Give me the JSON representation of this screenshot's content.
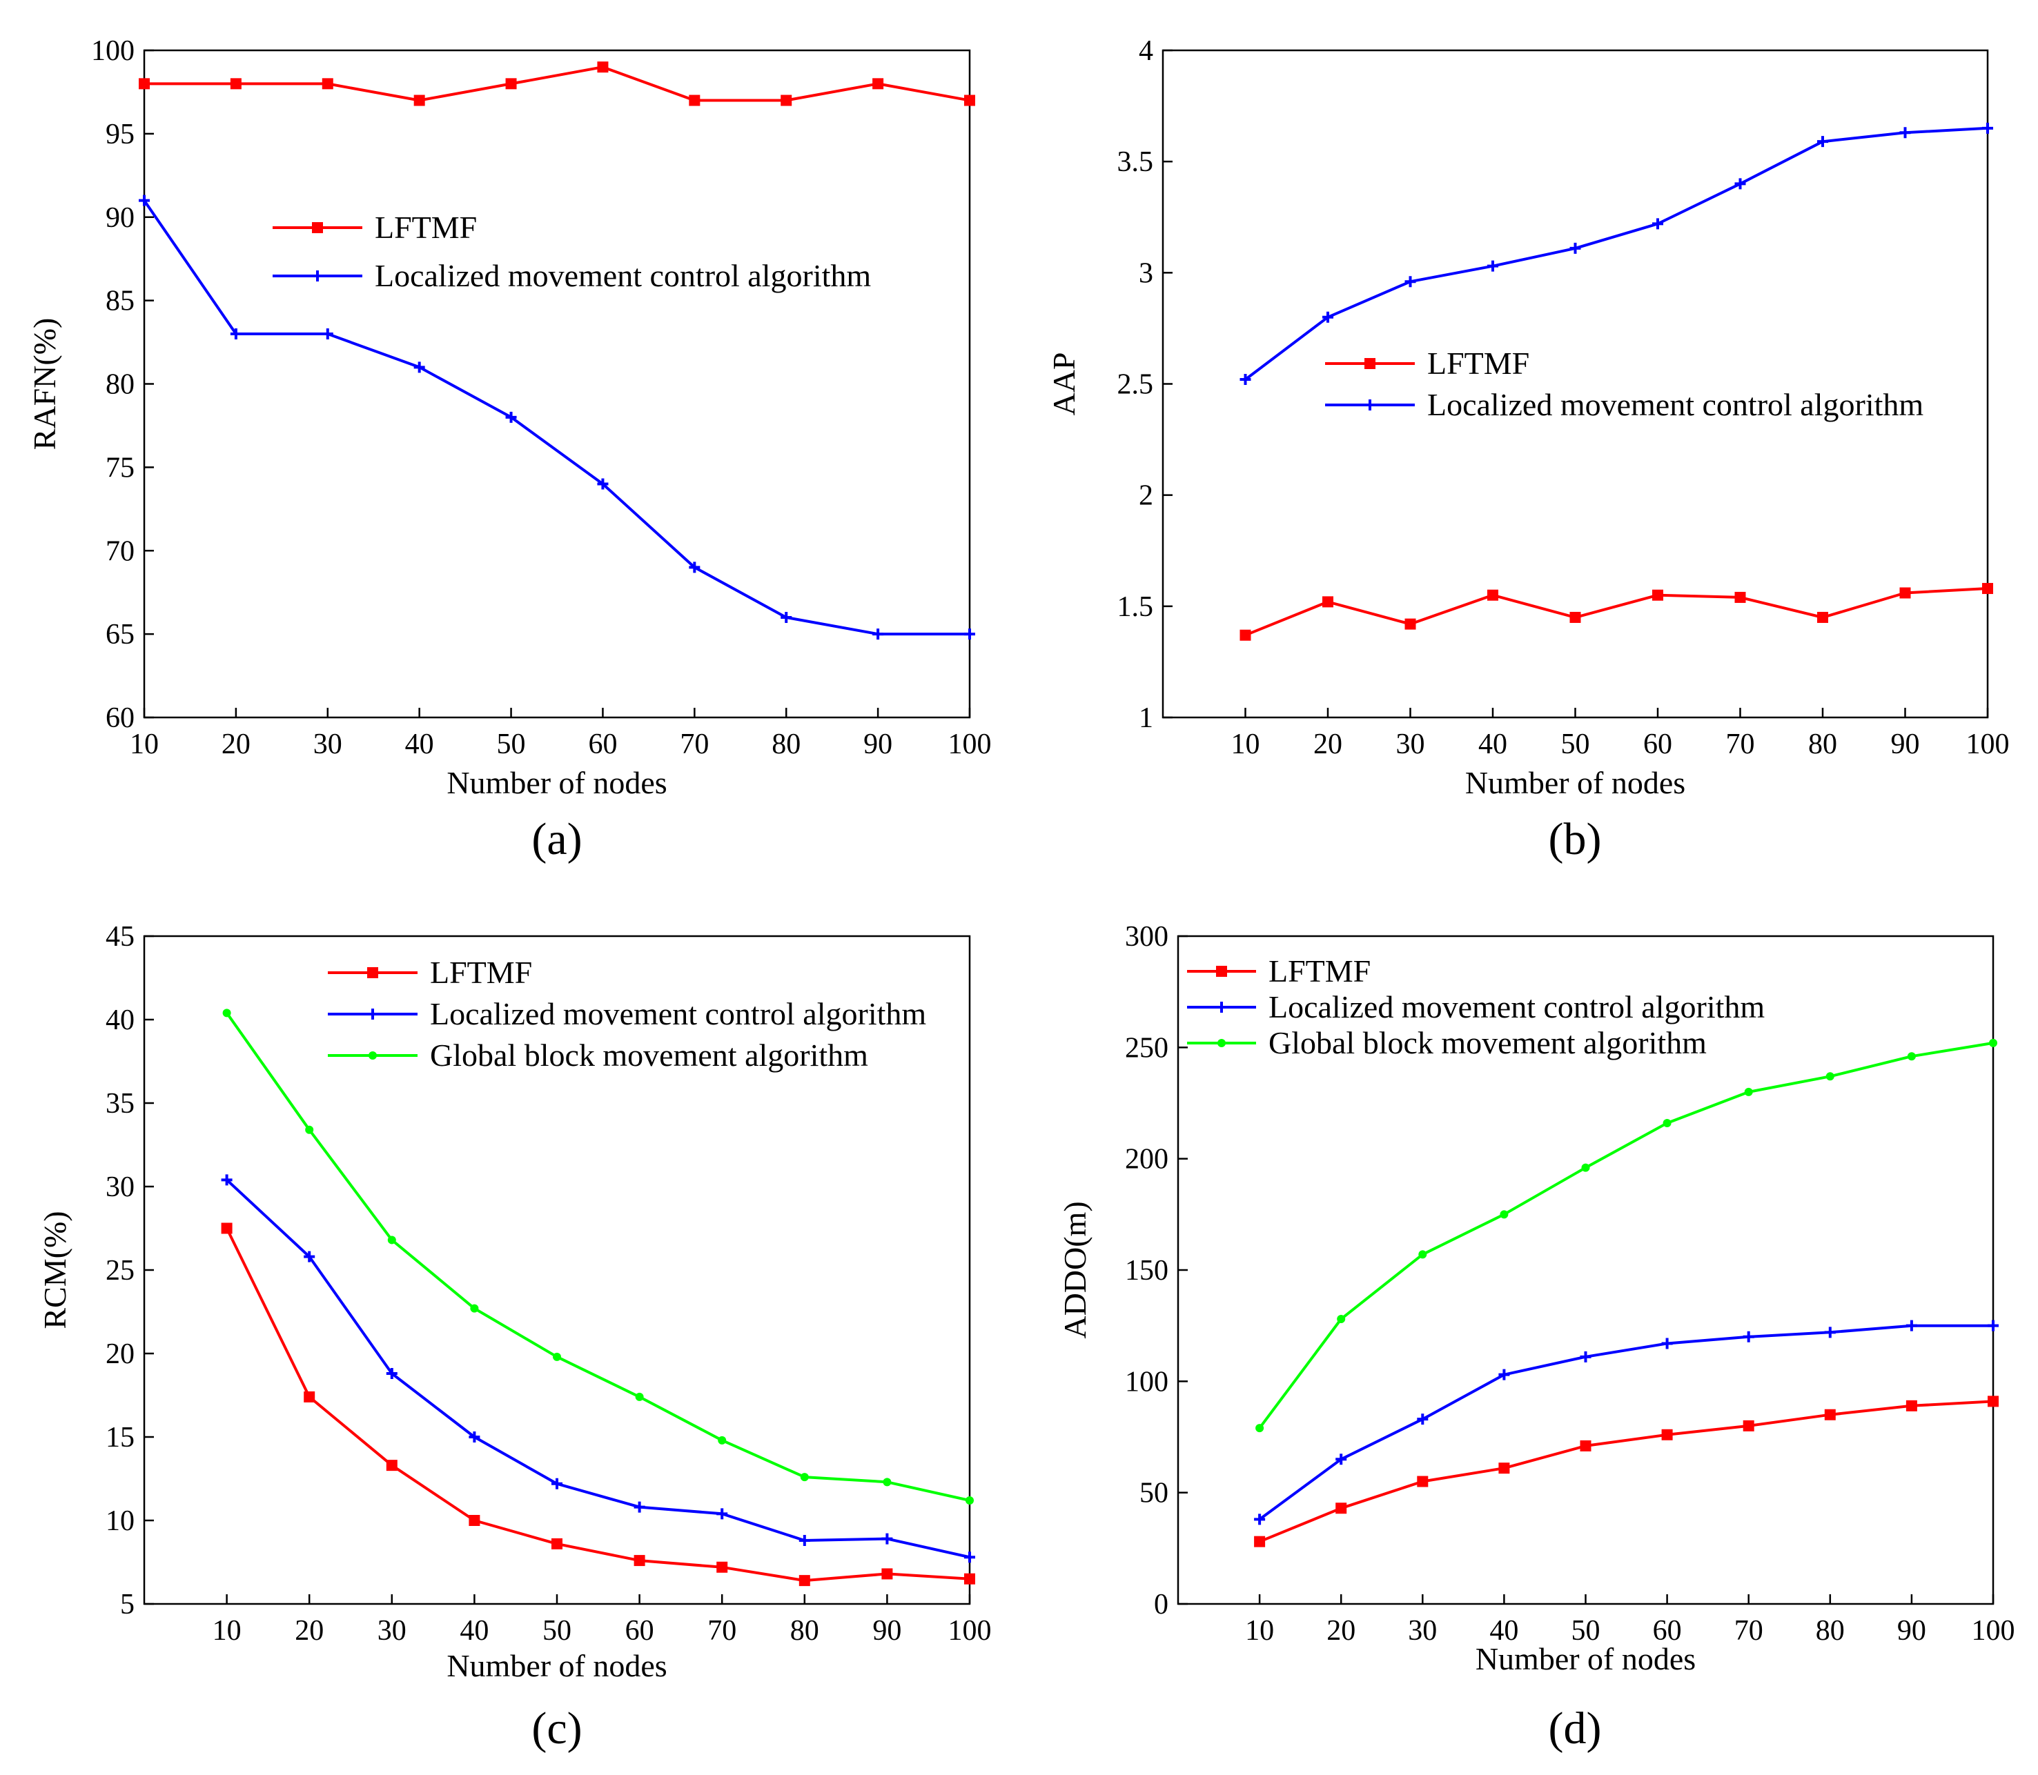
{
  "chart_data": [
    {
      "id": "a",
      "type": "line",
      "panel_label": "(a)",
      "xlabel": "Number of nodes",
      "ylabel": "RAFN(%)",
      "x": [
        10,
        20,
        30,
        40,
        50,
        60,
        70,
        80,
        90,
        100
      ],
      "xlim": [
        10,
        100
      ],
      "ylim": [
        60,
        100
      ],
      "xticks": [
        10,
        20,
        30,
        40,
        50,
        60,
        70,
        80,
        90,
        100
      ],
      "yticks": [
        60,
        65,
        70,
        75,
        80,
        85,
        90,
        95,
        100
      ],
      "grid": false,
      "legend_position": "center",
      "series": [
        {
          "name": "LFTMF",
          "color": "#ff0000",
          "marker": "square",
          "values": [
            98,
            98,
            98,
            97,
            98,
            99,
            97,
            97,
            98,
            97
          ]
        },
        {
          "name": "Localized movement control algorithm",
          "color": "#0000ff",
          "marker": "plus",
          "values": [
            91,
            83,
            83,
            81,
            78,
            74,
            69,
            66,
            65,
            65
          ]
        }
      ]
    },
    {
      "id": "b",
      "type": "line",
      "panel_label": "(b)",
      "xlabel": "Number of nodes",
      "ylabel": "AAP",
      "x": [
        10,
        20,
        30,
        40,
        50,
        60,
        70,
        80,
        90,
        100
      ],
      "xlim": [
        0,
        100
      ],
      "ylim": [
        1,
        4
      ],
      "xticks": [
        10,
        20,
        30,
        40,
        50,
        60,
        70,
        80,
        90,
        100
      ],
      "yticks": [
        1,
        1.5,
        2,
        2.5,
        3,
        3.5,
        4
      ],
      "grid": false,
      "legend_position": "center-right",
      "series": [
        {
          "name": "LFTMF",
          "color": "#ff0000",
          "marker": "square",
          "values": [
            1.37,
            1.52,
            1.42,
            1.55,
            1.45,
            1.55,
            1.54,
            1.45,
            1.56,
            1.58
          ]
        },
        {
          "name": "Localized movement control algorithm",
          "color": "#0000ff",
          "marker": "plus",
          "values": [
            2.52,
            2.8,
            2.96,
            3.03,
            3.11,
            3.22,
            3.4,
            3.59,
            3.63,
            3.65
          ]
        }
      ]
    },
    {
      "id": "c",
      "type": "line",
      "panel_label": "(c)",
      "xlabel": "Number of nodes",
      "ylabel": "RCM(%)",
      "x": [
        10,
        20,
        30,
        40,
        50,
        60,
        70,
        80,
        90,
        100
      ],
      "xlim": [
        0,
        100
      ],
      "ylim": [
        5,
        45
      ],
      "xticks": [
        10,
        20,
        30,
        40,
        50,
        60,
        70,
        80,
        90,
        100
      ],
      "yticks": [
        5,
        10,
        15,
        20,
        25,
        30,
        35,
        40,
        45
      ],
      "grid": false,
      "legend_position": "top-right",
      "series": [
        {
          "name": "LFTMF",
          "color": "#ff0000",
          "marker": "square",
          "values": [
            27.5,
            17.4,
            13.3,
            10,
            8.6,
            7.6,
            7.2,
            6.4,
            6.8,
            6.5
          ]
        },
        {
          "name": "Localized movement control algorithm",
          "color": "#0000ff",
          "marker": "plus",
          "values": [
            30.4,
            25.8,
            18.8,
            15,
            12.2,
            10.8,
            10.4,
            8.8,
            8.9,
            7.8
          ]
        },
        {
          "name": "Global block movement algorithm",
          "color": "#00ff00",
          "marker": "dot",
          "values": [
            40.4,
            33.4,
            26.8,
            22.7,
            19.8,
            17.4,
            14.8,
            12.6,
            12.3,
            11.2
          ]
        }
      ]
    },
    {
      "id": "d",
      "type": "line",
      "panel_label": "(d)",
      "xlabel": "Number of nodes",
      "ylabel": "ADDO(m)",
      "x": [
        10,
        20,
        30,
        40,
        50,
        60,
        70,
        80,
        90,
        100
      ],
      "xlim": [
        0,
        100
      ],
      "ylim": [
        0,
        300
      ],
      "xticks": [
        10,
        20,
        30,
        40,
        50,
        60,
        70,
        80,
        90,
        100
      ],
      "yticks": [
        0,
        50,
        100,
        150,
        200,
        250,
        300
      ],
      "grid": false,
      "legend_position": "top-left",
      "series": [
        {
          "name": "LFTMF",
          "color": "#ff0000",
          "marker": "square",
          "values": [
            28,
            43,
            55,
            61,
            71,
            76,
            80,
            85,
            89,
            91
          ]
        },
        {
          "name": "Localized movement control algorithm",
          "color": "#0000ff",
          "marker": "plus",
          "values": [
            38,
            65,
            83,
            103,
            111,
            117,
            120,
            122,
            125,
            125
          ]
        },
        {
          "name": "Global block movement algorithm",
          "color": "#00ff00",
          "marker": "dot",
          "values": [
            79,
            128,
            157,
            175,
            196,
            216,
            230,
            237,
            246,
            252
          ]
        }
      ]
    }
  ]
}
